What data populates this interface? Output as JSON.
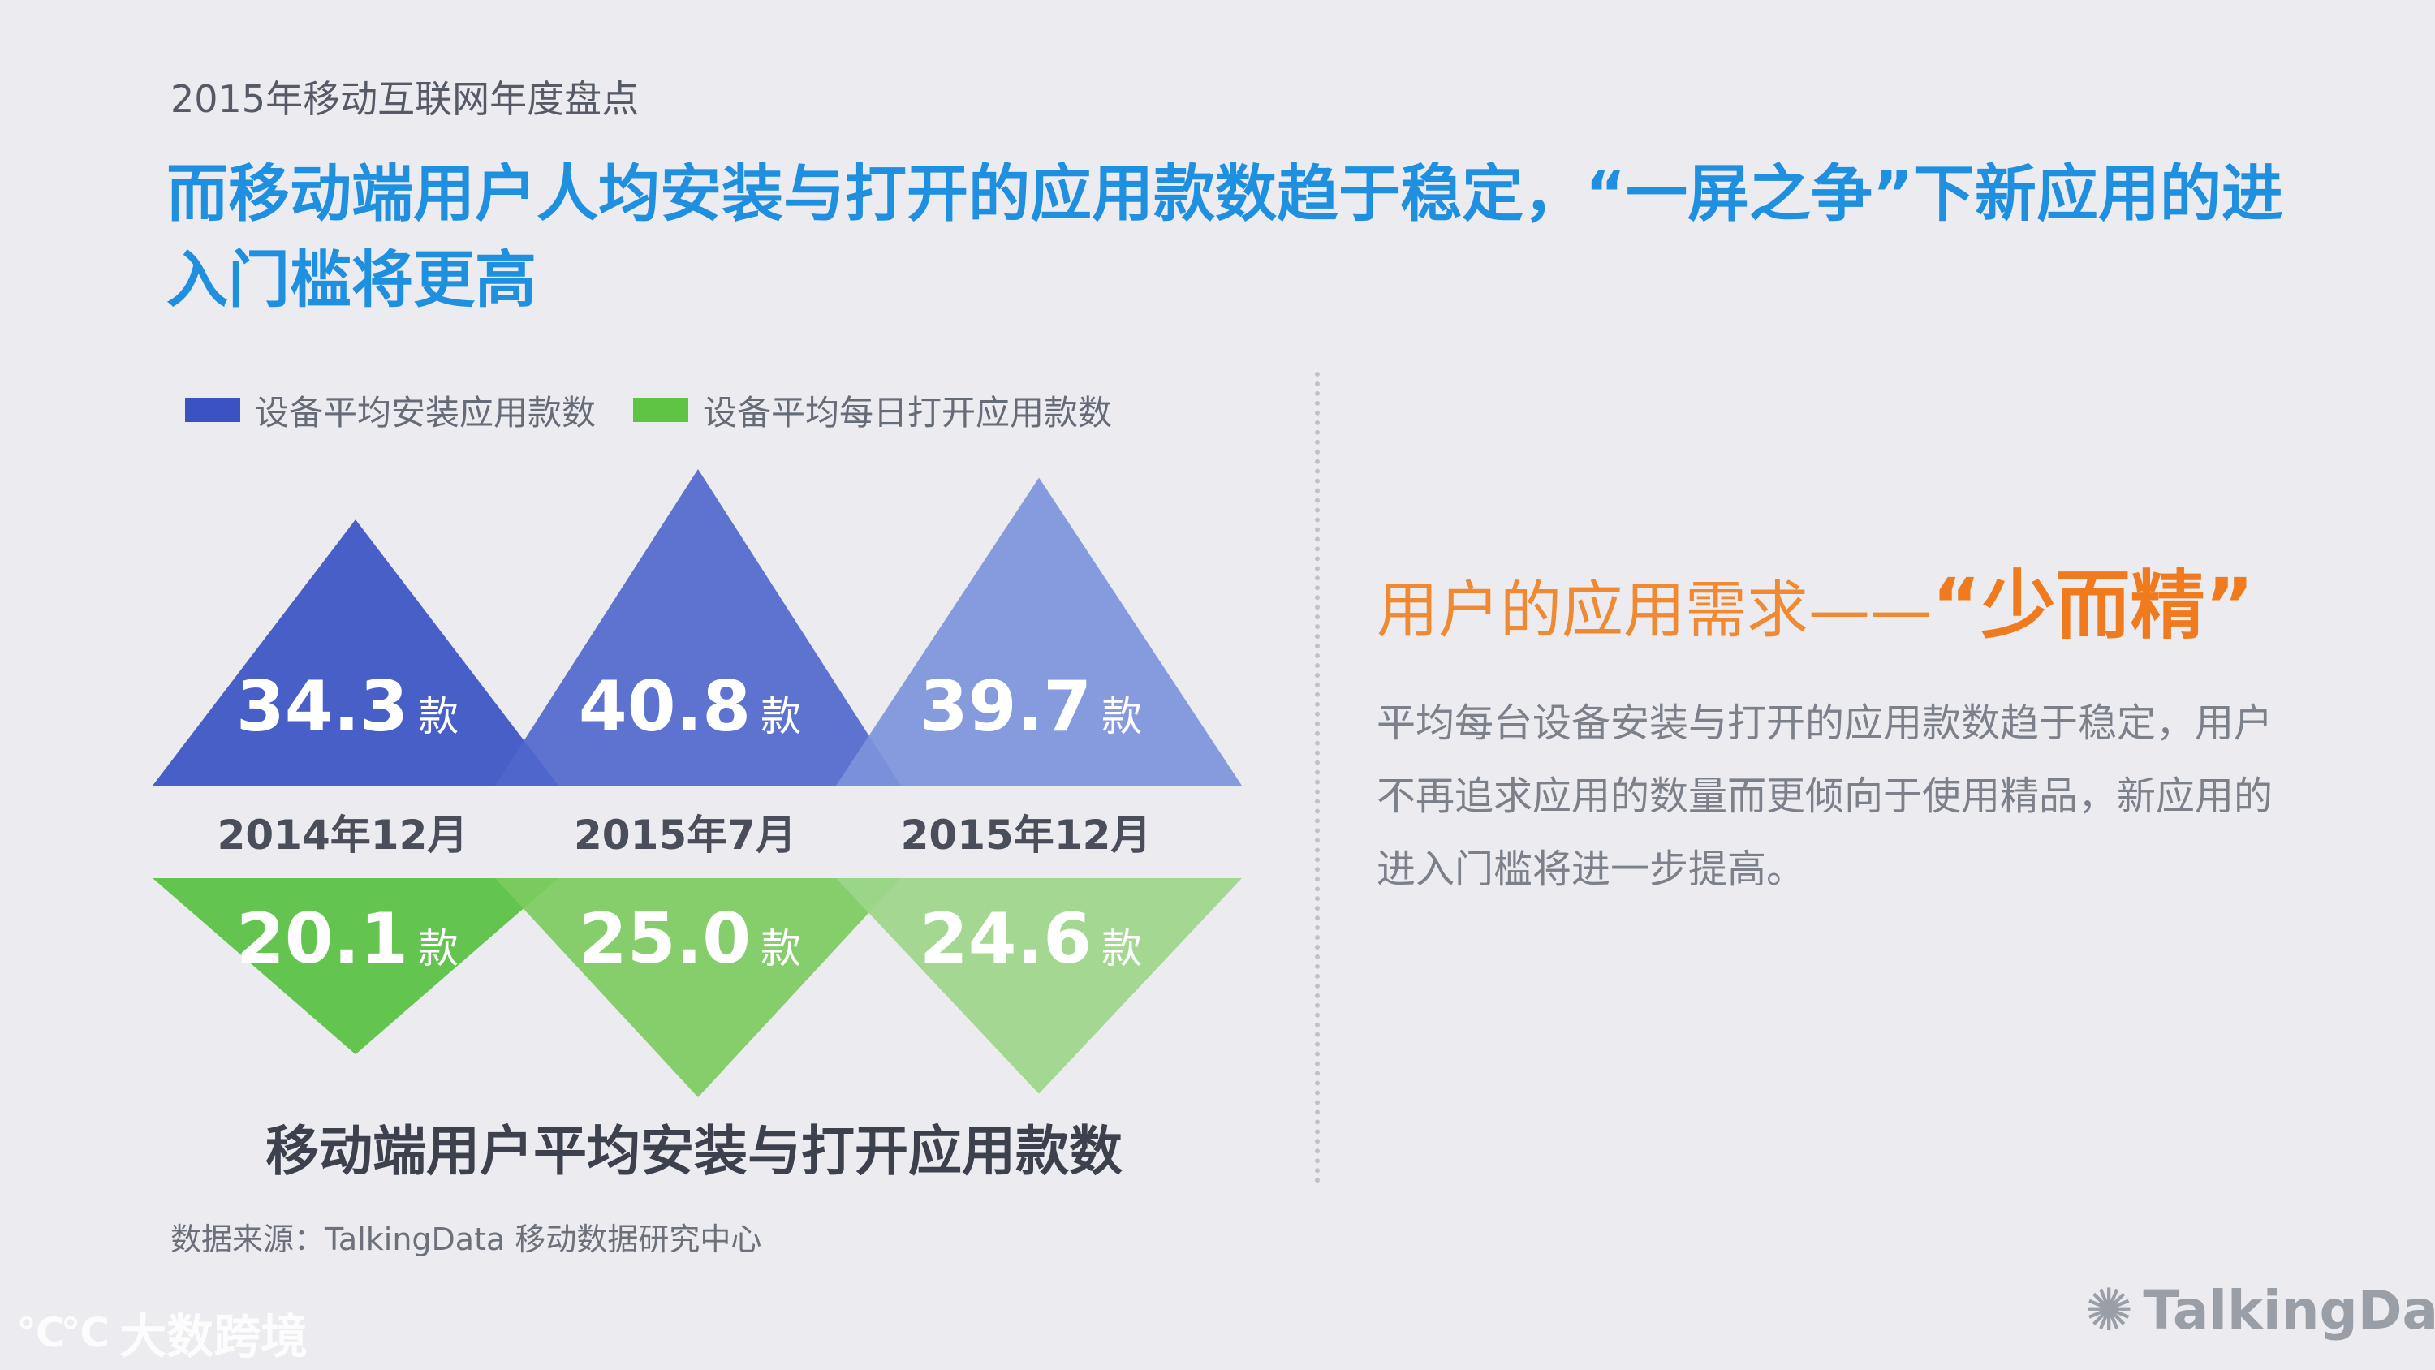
{
  "header": {
    "label": "2015年移动互联网年度盘点"
  },
  "headline": "而移动端用户人均安装与打开的应用款数趋于稳定，“一屏之争”下新应用的进入门槛将更高",
  "chart_data": {
    "type": "triangle-bar",
    "title": "移动端用户平均安装与打开应用款数",
    "categories": [
      "2014年12月",
      "2015年7月",
      "2015年12月"
    ],
    "unit": "款",
    "series": [
      {
        "name": "设备平均安装应用款数",
        "values": [
          34.3,
          40.8,
          39.7
        ],
        "labels": [
          "34.3",
          "40.8",
          "39.7"
        ],
        "colors": [
          "#3a52c4",
          "#5068cc",
          "#7d93dc"
        ],
        "legend_color": "#3a52c4",
        "direction": "up"
      },
      {
        "name": "设备平均每日打开应用款数",
        "values": [
          20.1,
          25.0,
          24.6
        ],
        "labels": [
          "20.1",
          "25.0",
          "24.6"
        ],
        "colors": [
          "#57c041",
          "#7ccb60",
          "#9dd68a"
        ],
        "legend_color": "#5ec443",
        "direction": "down"
      }
    ]
  },
  "source": "数据来源：TalkingData 移动数据研究中心",
  "side": {
    "title_prefix": "用户的应用需求——",
    "title_emph": "“少而精”",
    "body": "平均每台设备安装与打开的应用款数趋于稳定，用户不再追求应用的数量而更倾向于使用精品，新应用的进入门槛将进一步提高。"
  },
  "logos": {
    "left_mark": "℃℃",
    "left_text": "大数跨境",
    "right_text": "TalkingData"
  },
  "colors": {
    "headline": "#1f8fe0",
    "accent_orange": "#f07b1e",
    "background": "#ebebf0"
  }
}
